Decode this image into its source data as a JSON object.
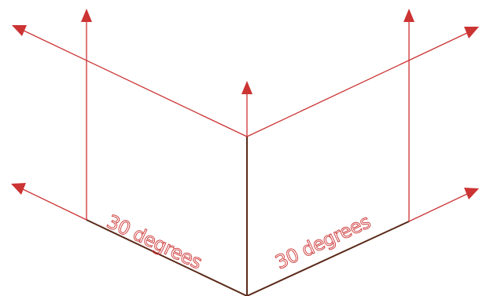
{
  "diagram": {
    "left_angle_label": "30 degrees",
    "right_angle_label": "30 degrees"
  },
  "colors": {
    "construction_line": "#cc3333",
    "edge_line": "#5a2a1a",
    "background": "#ffffff"
  }
}
